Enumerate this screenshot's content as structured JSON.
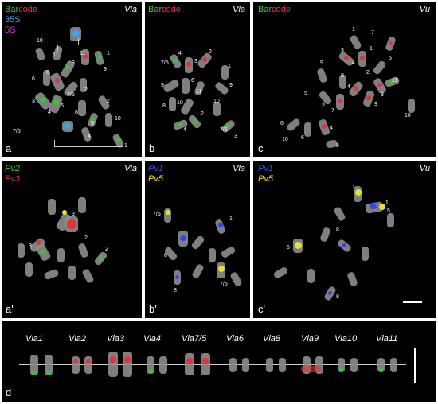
{
  "panels": {
    "a": {
      "label": "a",
      "species": "Vla"
    },
    "b": {
      "label": "b",
      "species": "Vla"
    },
    "c": {
      "label": "c",
      "species": "Vu"
    },
    "a2": {
      "label": "a'",
      "species": "Vla"
    },
    "b2": {
      "label": "b'",
      "species": "Vla"
    },
    "c2": {
      "label": "c'",
      "species": "Vu"
    },
    "d": {
      "label": "d"
    }
  },
  "legend": {
    "bar": "Bar",
    "code": "code",
    "s35": "35S",
    "s5": "5S",
    "pv2": "Pv2",
    "pv3": "Pv3",
    "pv1": "Pv1",
    "pv5": "Pv5"
  },
  "numbers": {
    "a": [
      "10",
      "11",
      "11",
      "1",
      "3",
      "9",
      "6",
      "8",
      "7/5",
      "2",
      "3",
      "4",
      "6",
      "2",
      "9",
      "10",
      "8",
      "7/5",
      "4",
      "1"
    ],
    "b": [
      "7/5",
      "4",
      "3",
      "2",
      "1",
      "9",
      "6",
      "11",
      "8",
      "10",
      "4",
      "7/5",
      "3",
      "9",
      "2",
      "10"
    ],
    "c": [
      "1",
      "7",
      "3",
      "1",
      "5",
      "4",
      "9",
      "8",
      "11",
      "4",
      "2",
      "5",
      "3",
      "9",
      "10",
      "6",
      "10",
      "6",
      "8",
      "2",
      "7",
      "4"
    ],
    "a2": [
      "3",
      "3",
      "2",
      "2"
    ],
    "b2": [
      "7/5",
      "1",
      "8",
      "8",
      "7/5"
    ],
    "c2": [
      "1",
      "1",
      "5",
      "8",
      "5",
      "8"
    ]
  },
  "karyotype": [
    "Vla1",
    "Vla2",
    "Vla3",
    "Vla4",
    "Vla7/5",
    "Vla6",
    "Vla8",
    "Vla9",
    "Vla10",
    "Vla11"
  ],
  "colors": {
    "green": "#35c535",
    "red": "#e0333a",
    "blue": "#3344ee",
    "yellow": "#e8e22a",
    "cyan": "#33a9ee",
    "magenta": "#e040c8"
  }
}
